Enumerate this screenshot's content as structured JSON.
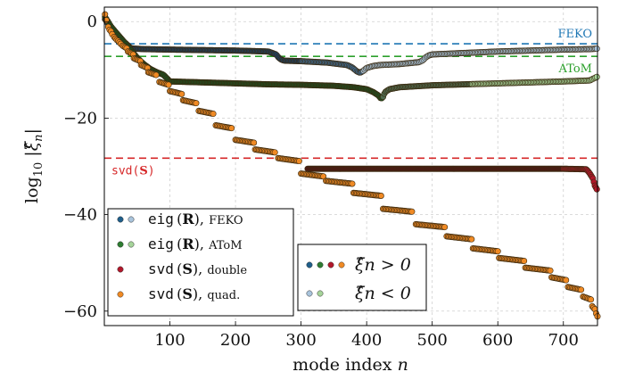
{
  "chart_data": {
    "type": "scatter",
    "xlabel": "mode index n",
    "ylabel": "log10 |ξ̂n|",
    "xlim": [
      0,
      752
    ],
    "ylim": [
      -63,
      3
    ],
    "xticks": [
      100,
      200,
      300,
      400,
      500,
      600,
      700
    ],
    "yticks": [
      0,
      -20,
      -40,
      -60
    ],
    "grid": true,
    "reference_lines": [
      {
        "label": "FEKO",
        "y": -4.6,
        "color": "#1f77b4"
      },
      {
        "label": "AToM",
        "y": -7.2,
        "color": "#2ca02c"
      },
      {
        "label": "svd(S)",
        "y": -28.3,
        "color": "#d62728"
      }
    ],
    "legend_main": {
      "placement": "bottom-left",
      "entries": [
        {
          "func": "eig",
          "arg": "R",
          "suffix": "FEKO",
          "colors": [
            "#1f5f8b",
            "#a9c4dc"
          ]
        },
        {
          "func": "eig",
          "arg": "R",
          "suffix": "AToM",
          "colors": [
            "#2e7d32",
            "#a6d49a"
          ]
        },
        {
          "func": "svd",
          "arg": "S",
          "suffix": "double",
          "colors": [
            "#b2182b"
          ]
        },
        {
          "func": "svd",
          "arg": "S",
          "suffix": "quad.",
          "colors": [
            "#f08a24"
          ]
        }
      ]
    },
    "legend_sign": {
      "placement": "bottom-center",
      "entries": [
        {
          "label": "ξ̂n > 0",
          "colors": [
            "#1f5f8b",
            "#2e7d32",
            "#b2182b",
            "#f08a24"
          ]
        },
        {
          "label": "ξ̂n < 0",
          "colors": [
            "#a9c4dc",
            "#a6d49a"
          ]
        }
      ]
    },
    "series": [
      {
        "name": "eig(R), FEKO",
        "positive_color": "#1f3f60",
        "negative_color": "#a9c4dc",
        "x": [
          1,
          5,
          10,
          15,
          20,
          25,
          30,
          35,
          38,
          40,
          45,
          60,
          100,
          150,
          200,
          250,
          262,
          266,
          270,
          275,
          300,
          340,
          370,
          378,
          385,
          390,
          395,
          400,
          410,
          420,
          450,
          480,
          486,
          490,
          495,
          500,
          550,
          600,
          650,
          700,
          740,
          752
        ],
        "y": [
          0.5,
          -0.3,
          -1.2,
          -2.2,
          -2.8,
          -3.4,
          -4.2,
          -4.8,
          -5.2,
          -5.5,
          -5.6,
          -5.7,
          -5.8,
          -5.9,
          -6.0,
          -6.2,
          -6.8,
          -7.5,
          -7.9,
          -8.1,
          -8.2,
          -8.5,
          -9.0,
          -9.5,
          -10.3,
          -10.6,
          -10.2,
          -9.6,
          -9.2,
          -9.0,
          -8.8,
          -8.4,
          -8.0,
          -7.4,
          -7.0,
          -6.8,
          -6.5,
          -6.2,
          -6.0,
          -5.8,
          -5.7,
          -5.6
        ],
        "sign_change_at": 393
      },
      {
        "name": "eig(R), AToM",
        "positive_color": "#1f4d1f",
        "negative_color": "#a6d49a",
        "x": [
          1,
          10,
          20,
          30,
          40,
          50,
          60,
          70,
          80,
          90,
          100,
          150,
          200,
          250,
          300,
          350,
          380,
          400,
          410,
          418,
          422,
          425,
          428,
          435,
          450,
          500,
          550,
          600,
          650,
          700,
          740,
          752
        ],
        "y": [
          1.0,
          -1.0,
          -2.6,
          -4.2,
          -5.8,
          -7.5,
          -8.8,
          -9.8,
          -10.5,
          -11.0,
          -12.4,
          -12.6,
          -12.8,
          -13.0,
          -13.1,
          -13.3,
          -13.6,
          -14.0,
          -14.6,
          -15.3,
          -16.0,
          -15.6,
          -14.6,
          -14.0,
          -13.6,
          -13.2,
          -13.0,
          -12.8,
          -12.6,
          -12.4,
          -12.2,
          -11.4
        ],
        "sign_change_at": 424
      },
      {
        "name": "svd(S), double",
        "color": "#b2182b",
        "x": [
          310,
          350,
          400,
          450,
          500,
          550,
          600,
          650,
          700,
          735,
          740,
          745,
          748,
          752
        ],
        "y": [
          -30.5,
          -30.5,
          -30.5,
          -30.5,
          -30.5,
          -30.5,
          -30.5,
          -30.5,
          -30.5,
          -30.6,
          -31.4,
          -32.5,
          -34.0,
          -35.0
        ]
      },
      {
        "name": "svd(S), quad.",
        "color": "#f08a24",
        "steps": [
          {
            "x0": 1,
            "x1": 1,
            "y": 1.5
          },
          {
            "x0": 3,
            "x1": 3,
            "y": 0.3
          },
          {
            "x0": 6,
            "x1": 8,
            "y": -1.1
          },
          {
            "x0": 10,
            "x1": 12,
            "y": -2.0
          },
          {
            "x0": 15,
            "x1": 19,
            "y": -3.2
          },
          {
            "x0": 21,
            "x1": 25,
            "y": -4.0
          },
          {
            "x0": 28,
            "x1": 35,
            "y": -5.0
          },
          {
            "x0": 36,
            "x1": 44,
            "y": -6.2
          },
          {
            "x0": 45,
            "x1": 55,
            "y": -7.6
          },
          {
            "x0": 56,
            "x1": 66,
            "y": -9.0
          },
          {
            "x0": 67,
            "x1": 80,
            "y": -10.5
          },
          {
            "x0": 84,
            "x1": 98,
            "y": -12.5
          },
          {
            "x0": 100,
            "x1": 118,
            "y": -14.4
          },
          {
            "x0": 120,
            "x1": 140,
            "y": -16.3
          },
          {
            "x0": 144,
            "x1": 166,
            "y": -18.5
          },
          {
            "x0": 170,
            "x1": 195,
            "y": -21.5
          },
          {
            "x0": 200,
            "x1": 228,
            "y": -24.5
          },
          {
            "x0": 230,
            "x1": 260,
            "y": -26.5
          },
          {
            "x0": 265,
            "x1": 297,
            "y": -28.3
          },
          {
            "x0": 300,
            "x1": 335,
            "y": -31.5
          },
          {
            "x0": 338,
            "x1": 378,
            "y": -33.0
          },
          {
            "x0": 380,
            "x1": 422,
            "y": -35.5
          },
          {
            "x0": 425,
            "x1": 470,
            "y": -38.8
          },
          {
            "x0": 475,
            "x1": 520,
            "y": -42.0
          },
          {
            "x0": 522,
            "x1": 560,
            "y": -44.5
          },
          {
            "x0": 562,
            "x1": 600,
            "y": -47.0
          },
          {
            "x0": 602,
            "x1": 640,
            "y": -49.0
          },
          {
            "x0": 642,
            "x1": 680,
            "y": -51.0
          },
          {
            "x0": 682,
            "x1": 705,
            "y": -53.0
          },
          {
            "x0": 707,
            "x1": 728,
            "y": -55.0
          },
          {
            "x0": 730,
            "x1": 742,
            "y": -57.0
          },
          {
            "x0": 744,
            "x1": 748,
            "y": -59.0
          },
          {
            "x0": 750,
            "x1": 752,
            "y": -60.5
          }
        ]
      }
    ]
  }
}
